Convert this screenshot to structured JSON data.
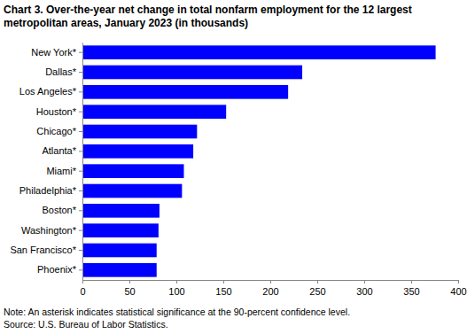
{
  "chart_data": {
    "type": "bar",
    "orientation": "horizontal",
    "title": "Chart 3. Over-the-year net change in total nonfarm employment for the 12 largest metropolitan areas, January 2023 (in thousands)",
    "categories": [
      "New York*",
      "Dallas*",
      "Los Angeles*",
      "Houston*",
      "Chicago*",
      "Atlanta*",
      "Miami*",
      "Philadelphia*",
      "Boston*",
      "Washington*",
      "San Francisco*",
      "Phoenix*"
    ],
    "values": [
      376,
      234,
      219,
      153,
      122,
      118,
      108,
      106,
      82,
      81,
      79,
      79
    ],
    "color": "#0000ff",
    "xlim": [
      0,
      400
    ],
    "xticks": [
      0,
      50,
      100,
      150,
      200,
      250,
      300,
      350,
      400
    ],
    "grid": false,
    "notes": [
      "Note: An asterisk indicates statistical significance at the 90-percent confidence level.",
      "Source: U.S. Bureau of Labor Statistics."
    ]
  }
}
